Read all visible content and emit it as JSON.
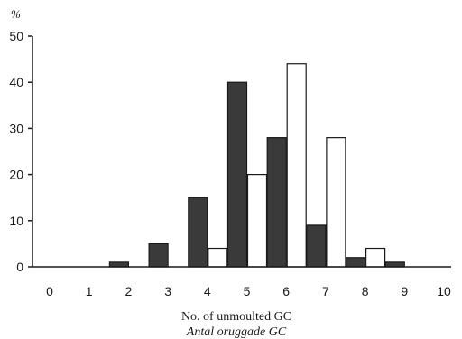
{
  "chart_data": {
    "type": "bar",
    "categories": [
      "0",
      "1",
      "2",
      "3",
      "4",
      "5",
      "6",
      "7",
      "8",
      "9",
      "10"
    ],
    "series": [
      {
        "color": "#3a3a3a",
        "values": [
          0,
          0,
          1,
          5,
          15,
          40,
          28,
          9,
          2,
          1,
          0
        ]
      },
      {
        "color": "#ffffff",
        "values": [
          0,
          0,
          0,
          0,
          4,
          20,
          44,
          28,
          4,
          0,
          0
        ]
      }
    ],
    "ylim": [
      0,
      50
    ],
    "yticks": [
      "0",
      "10",
      "20",
      "30",
      "40",
      "50"
    ],
    "ylabel": "%",
    "xlabel": "No. of unmoulted GC",
    "xlabel_alt": "Antal oruggade GC",
    "grid": false
  }
}
